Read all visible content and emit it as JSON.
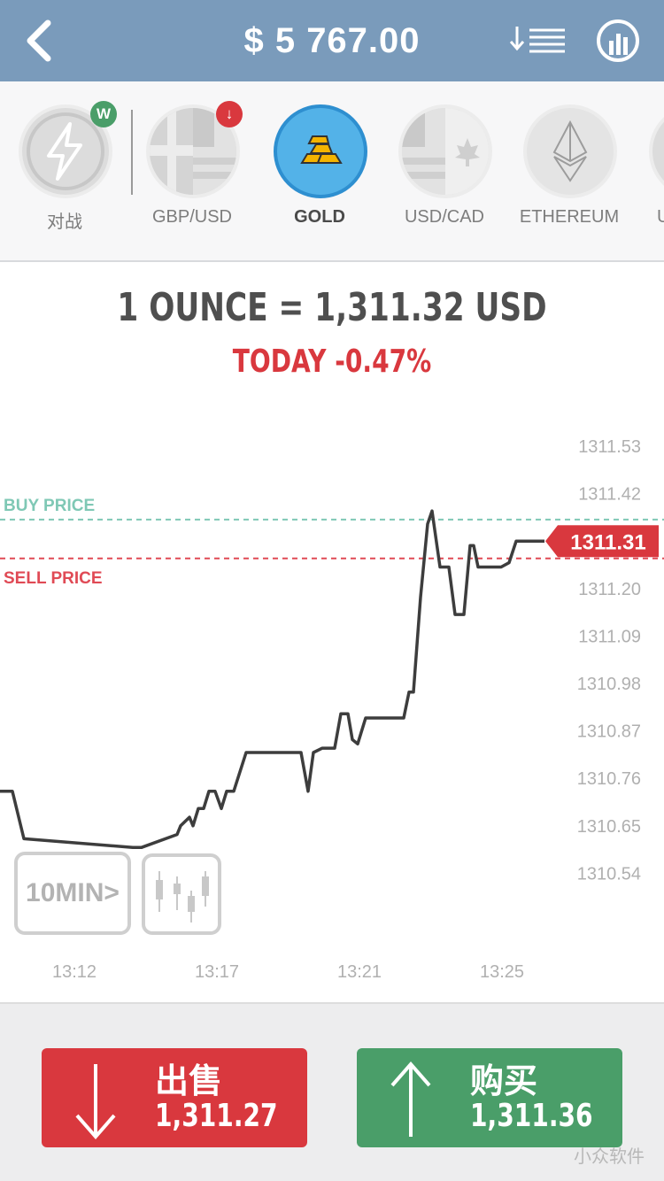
{
  "header": {
    "balance": "$ 5 767.00",
    "icons": [
      "back-arrow-icon",
      "sort-list-icon",
      "stats-chart-icon"
    ]
  },
  "assets": [
    {
      "label": "对战",
      "icon": "lightning-icon",
      "badge": "W",
      "badge_color": "#4a9e69"
    },
    {
      "label": "GBP/USD",
      "icon": "uk-us-flag-icon",
      "badge": "↓",
      "badge_color": "#d9383e"
    },
    {
      "label": "GOLD",
      "icon": "gold-bars-icon",
      "active": true
    },
    {
      "label": "USD/CAD",
      "icon": "us-canada-flag-icon"
    },
    {
      "label": "ETHEREUM",
      "icon": "ethereum-icon"
    },
    {
      "label": "U",
      "icon": "partial-asset-icon"
    }
  ],
  "quote": {
    "price_text": "1 OUNCE = 1,311.32 USD",
    "today_text": "TODAY -0.47%"
  },
  "chart_labels": {
    "buy_price": "BUY PRICE",
    "sell_price": "SELL PRICE",
    "current_price": "1311.31",
    "timeframe": "10MIN>"
  },
  "chart_data": {
    "type": "line",
    "ylim": [
      1310.43,
      1311.6
    ],
    "y_ticks": [
      "1311.53",
      "1311.42",
      "1311.31",
      "1311.20",
      "1311.09",
      "1310.98",
      "1310.87",
      "1310.76",
      "1310.65",
      "1310.54"
    ],
    "x_ticks": [
      "13:12",
      "13:17",
      "13:21",
      "13:25"
    ],
    "buy_price": 1311.36,
    "sell_price": 1311.27,
    "last_price": 1311.31,
    "colors": {
      "line": "#3d3d3d",
      "buy": "#7fc8b5",
      "sell": "#e04a55"
    },
    "series": [
      {
        "values": [
          [
            0,
            1310.73
          ],
          [
            14,
            1310.73
          ],
          [
            27,
            1310.62
          ],
          [
            150,
            1310.6
          ],
          [
            160,
            1310.6
          ],
          [
            200,
            1310.63
          ],
          [
            204,
            1310.65
          ],
          [
            214,
            1310.67
          ],
          [
            218,
            1310.65
          ],
          [
            224,
            1310.69
          ],
          [
            230,
            1310.69
          ],
          [
            236,
            1310.73
          ],
          [
            243,
            1310.73
          ],
          [
            250,
            1310.69
          ],
          [
            256,
            1310.73
          ],
          [
            264,
            1310.73
          ],
          [
            278,
            1310.82
          ],
          [
            291,
            1310.82
          ],
          [
            304,
            1310.82
          ],
          [
            318,
            1310.82
          ],
          [
            331,
            1310.82
          ],
          [
            340,
            1310.82
          ],
          [
            348,
            1310.73
          ],
          [
            354,
            1310.82
          ],
          [
            364,
            1310.83
          ],
          [
            378,
            1310.83
          ],
          [
            385,
            1310.91
          ],
          [
            393,
            1310.91
          ],
          [
            398,
            1310.85
          ],
          [
            404,
            1310.84
          ],
          [
            413,
            1310.9
          ],
          [
            426,
            1310.9
          ],
          [
            440,
            1310.9
          ],
          [
            456,
            1310.9
          ],
          [
            462,
            1310.96
          ],
          [
            467,
            1310.96
          ],
          [
            475,
            1311.18
          ],
          [
            483,
            1311.35
          ],
          [
            488,
            1311.38
          ],
          [
            497,
            1311.25
          ],
          [
            507,
            1311.25
          ],
          [
            514,
            1311.14
          ],
          [
            524,
            1311.14
          ],
          [
            531,
            1311.3
          ],
          [
            535,
            1311.3
          ],
          [
            540,
            1311.25
          ],
          [
            552,
            1311.25
          ],
          [
            566,
            1311.25
          ],
          [
            575,
            1311.26
          ],
          [
            583,
            1311.31
          ],
          [
            595,
            1311.31
          ],
          [
            615,
            1311.31
          ]
        ]
      }
    ]
  },
  "trade": {
    "sell_label": "出售",
    "sell_price": "1,311.27",
    "buy_label": "购买",
    "buy_price": "1,311.36"
  },
  "watermark": "小众软件"
}
